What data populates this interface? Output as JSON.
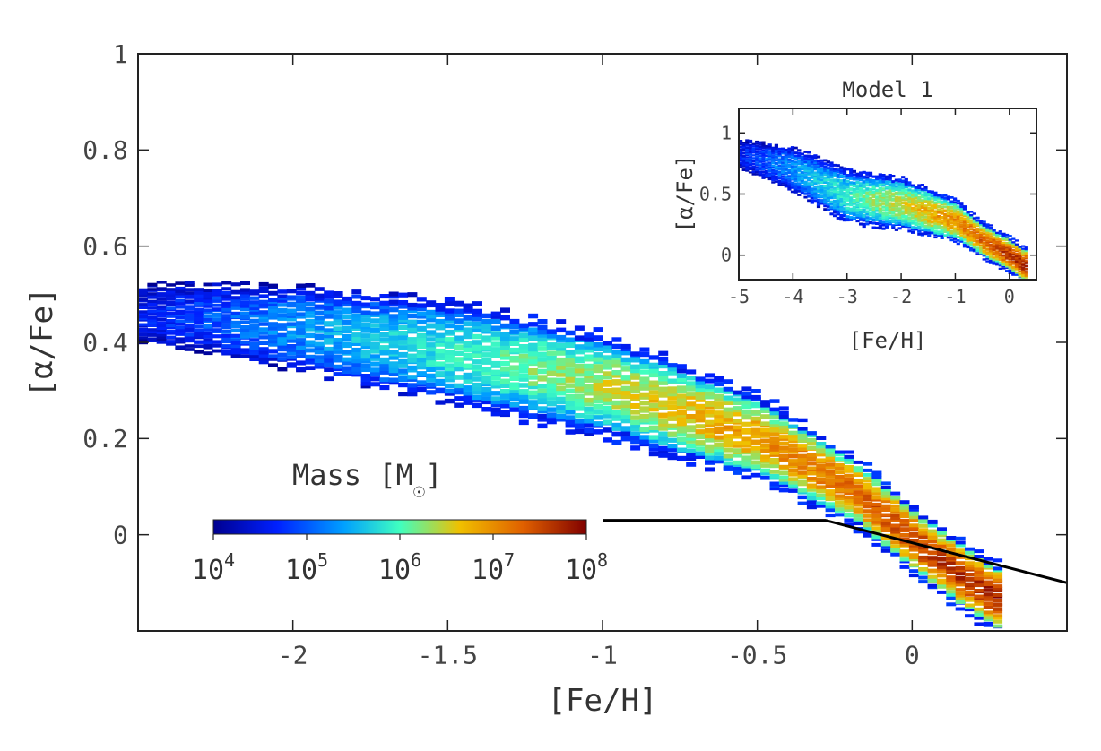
{
  "chart_data": [
    {
      "type": "heatmap",
      "xlabel": "[Fe/H]",
      "ylabel": "[α/Fe]",
      "xlim": [
        -2.5,
        0.5
      ],
      "ylim": [
        -0.2,
        1.0
      ],
      "xticks": [
        {
          "value": -2,
          "label": "-2"
        },
        {
          "value": -1.5,
          "label": "-1.5"
        },
        {
          "value": -1,
          "label": "-1"
        },
        {
          "value": -0.5,
          "label": "-0.5"
        },
        {
          "value": 0,
          "label": "0"
        }
      ],
      "yticks": [
        {
          "value": 0,
          "label": "0"
        },
        {
          "value": 0.2,
          "label": "0.2"
        },
        {
          "value": 0.4,
          "label": "0.4"
        },
        {
          "value": 0.6,
          "label": "0.6"
        },
        {
          "value": 0.8,
          "label": "0.8"
        },
        {
          "value": 1,
          "label": "1"
        }
      ],
      "grid": false,
      "colorbar": {
        "title_main": "Mass [M",
        "title_sub": "☉",
        "title_close": "]",
        "scale": "log",
        "colormap": "jet",
        "ticks": [
          {
            "base": "10",
            "exp": "4"
          },
          {
            "base": "10",
            "exp": "5"
          },
          {
            "base": "10",
            "exp": "6"
          },
          {
            "base": "10",
            "exp": "7"
          },
          {
            "base": "10",
            "exp": "8"
          }
        ],
        "colors": [
          "#00008f",
          "#0020ff",
          "#00a0ff",
          "#40ffbf",
          "#f0c000",
          "#e06000",
          "#800000"
        ]
      },
      "density_ridge": {
        "fe_h": [
          -2.45,
          -2.0,
          -1.5,
          -1.0,
          -0.5,
          -0.2,
          0.05,
          0.25
        ],
        "alpha_fe": [
          0.46,
          0.43,
          0.38,
          0.31,
          0.2,
          0.09,
          -0.04,
          -0.13
        ]
      },
      "divider_line": {
        "fe_h": [
          -1.0,
          -0.28,
          0.5
        ],
        "alpha_fe": [
          0.03,
          0.03,
          -0.1
        ]
      }
    },
    {
      "type": "heatmap",
      "title": "Model 1",
      "xlabel": "[Fe/H]",
      "ylabel": "[α/Fe]",
      "xlim": [
        -5,
        0.5
      ],
      "ylim": [
        -0.2,
        1.2
      ],
      "xticks": [
        {
          "value": -5,
          "label": "-5"
        },
        {
          "value": -4,
          "label": "-4"
        },
        {
          "value": -3,
          "label": "-3"
        },
        {
          "value": -2,
          "label": "-2"
        },
        {
          "value": -1,
          "label": "-1"
        },
        {
          "value": 0,
          "label": "0"
        }
      ],
      "yticks": [
        {
          "value": 0,
          "label": "0"
        },
        {
          "value": 0.5,
          "label": "0.5"
        },
        {
          "value": 1,
          "label": "1"
        }
      ],
      "grid": false,
      "density_ridge": {
        "fe_h": [
          -4.9,
          -4.0,
          -3.0,
          -2.0,
          -1.0,
          -0.5,
          0.0,
          0.25
        ],
        "alpha_fe": [
          0.82,
          0.7,
          0.48,
          0.42,
          0.28,
          0.12,
          0.0,
          -0.08
        ]
      }
    }
  ]
}
